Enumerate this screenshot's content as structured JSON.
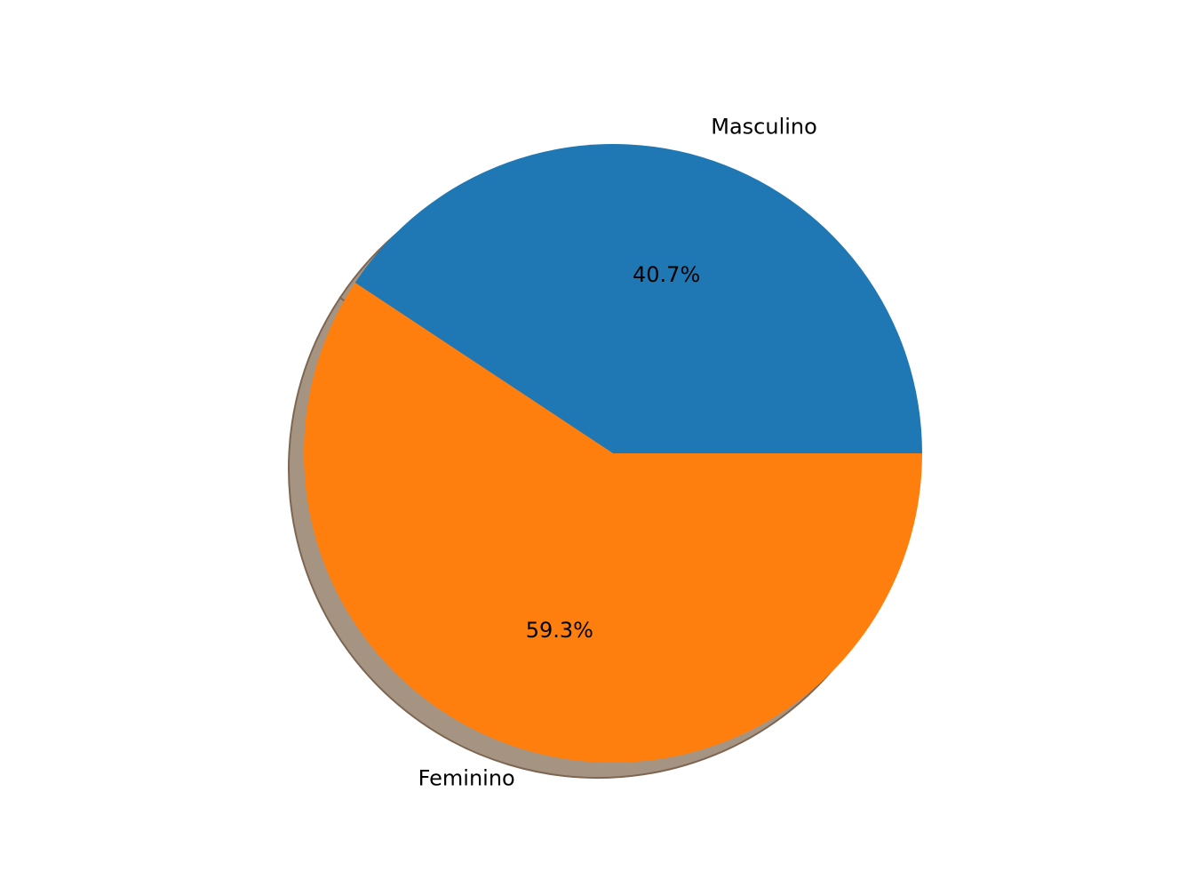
{
  "chart_data": {
    "type": "pie",
    "title": "",
    "categories": [
      "Masculino",
      "Feminino"
    ],
    "values": [
      40.7,
      59.3
    ],
    "percent_labels": [
      "40.7%",
      "59.3%"
    ],
    "colors": [
      "#1f77b4",
      "#ff7f0e"
    ],
    "shadow": true,
    "shadow_color": "#a69482",
    "start_angle_deg": 0,
    "direction": "counterclockwise",
    "legend": "none"
  }
}
